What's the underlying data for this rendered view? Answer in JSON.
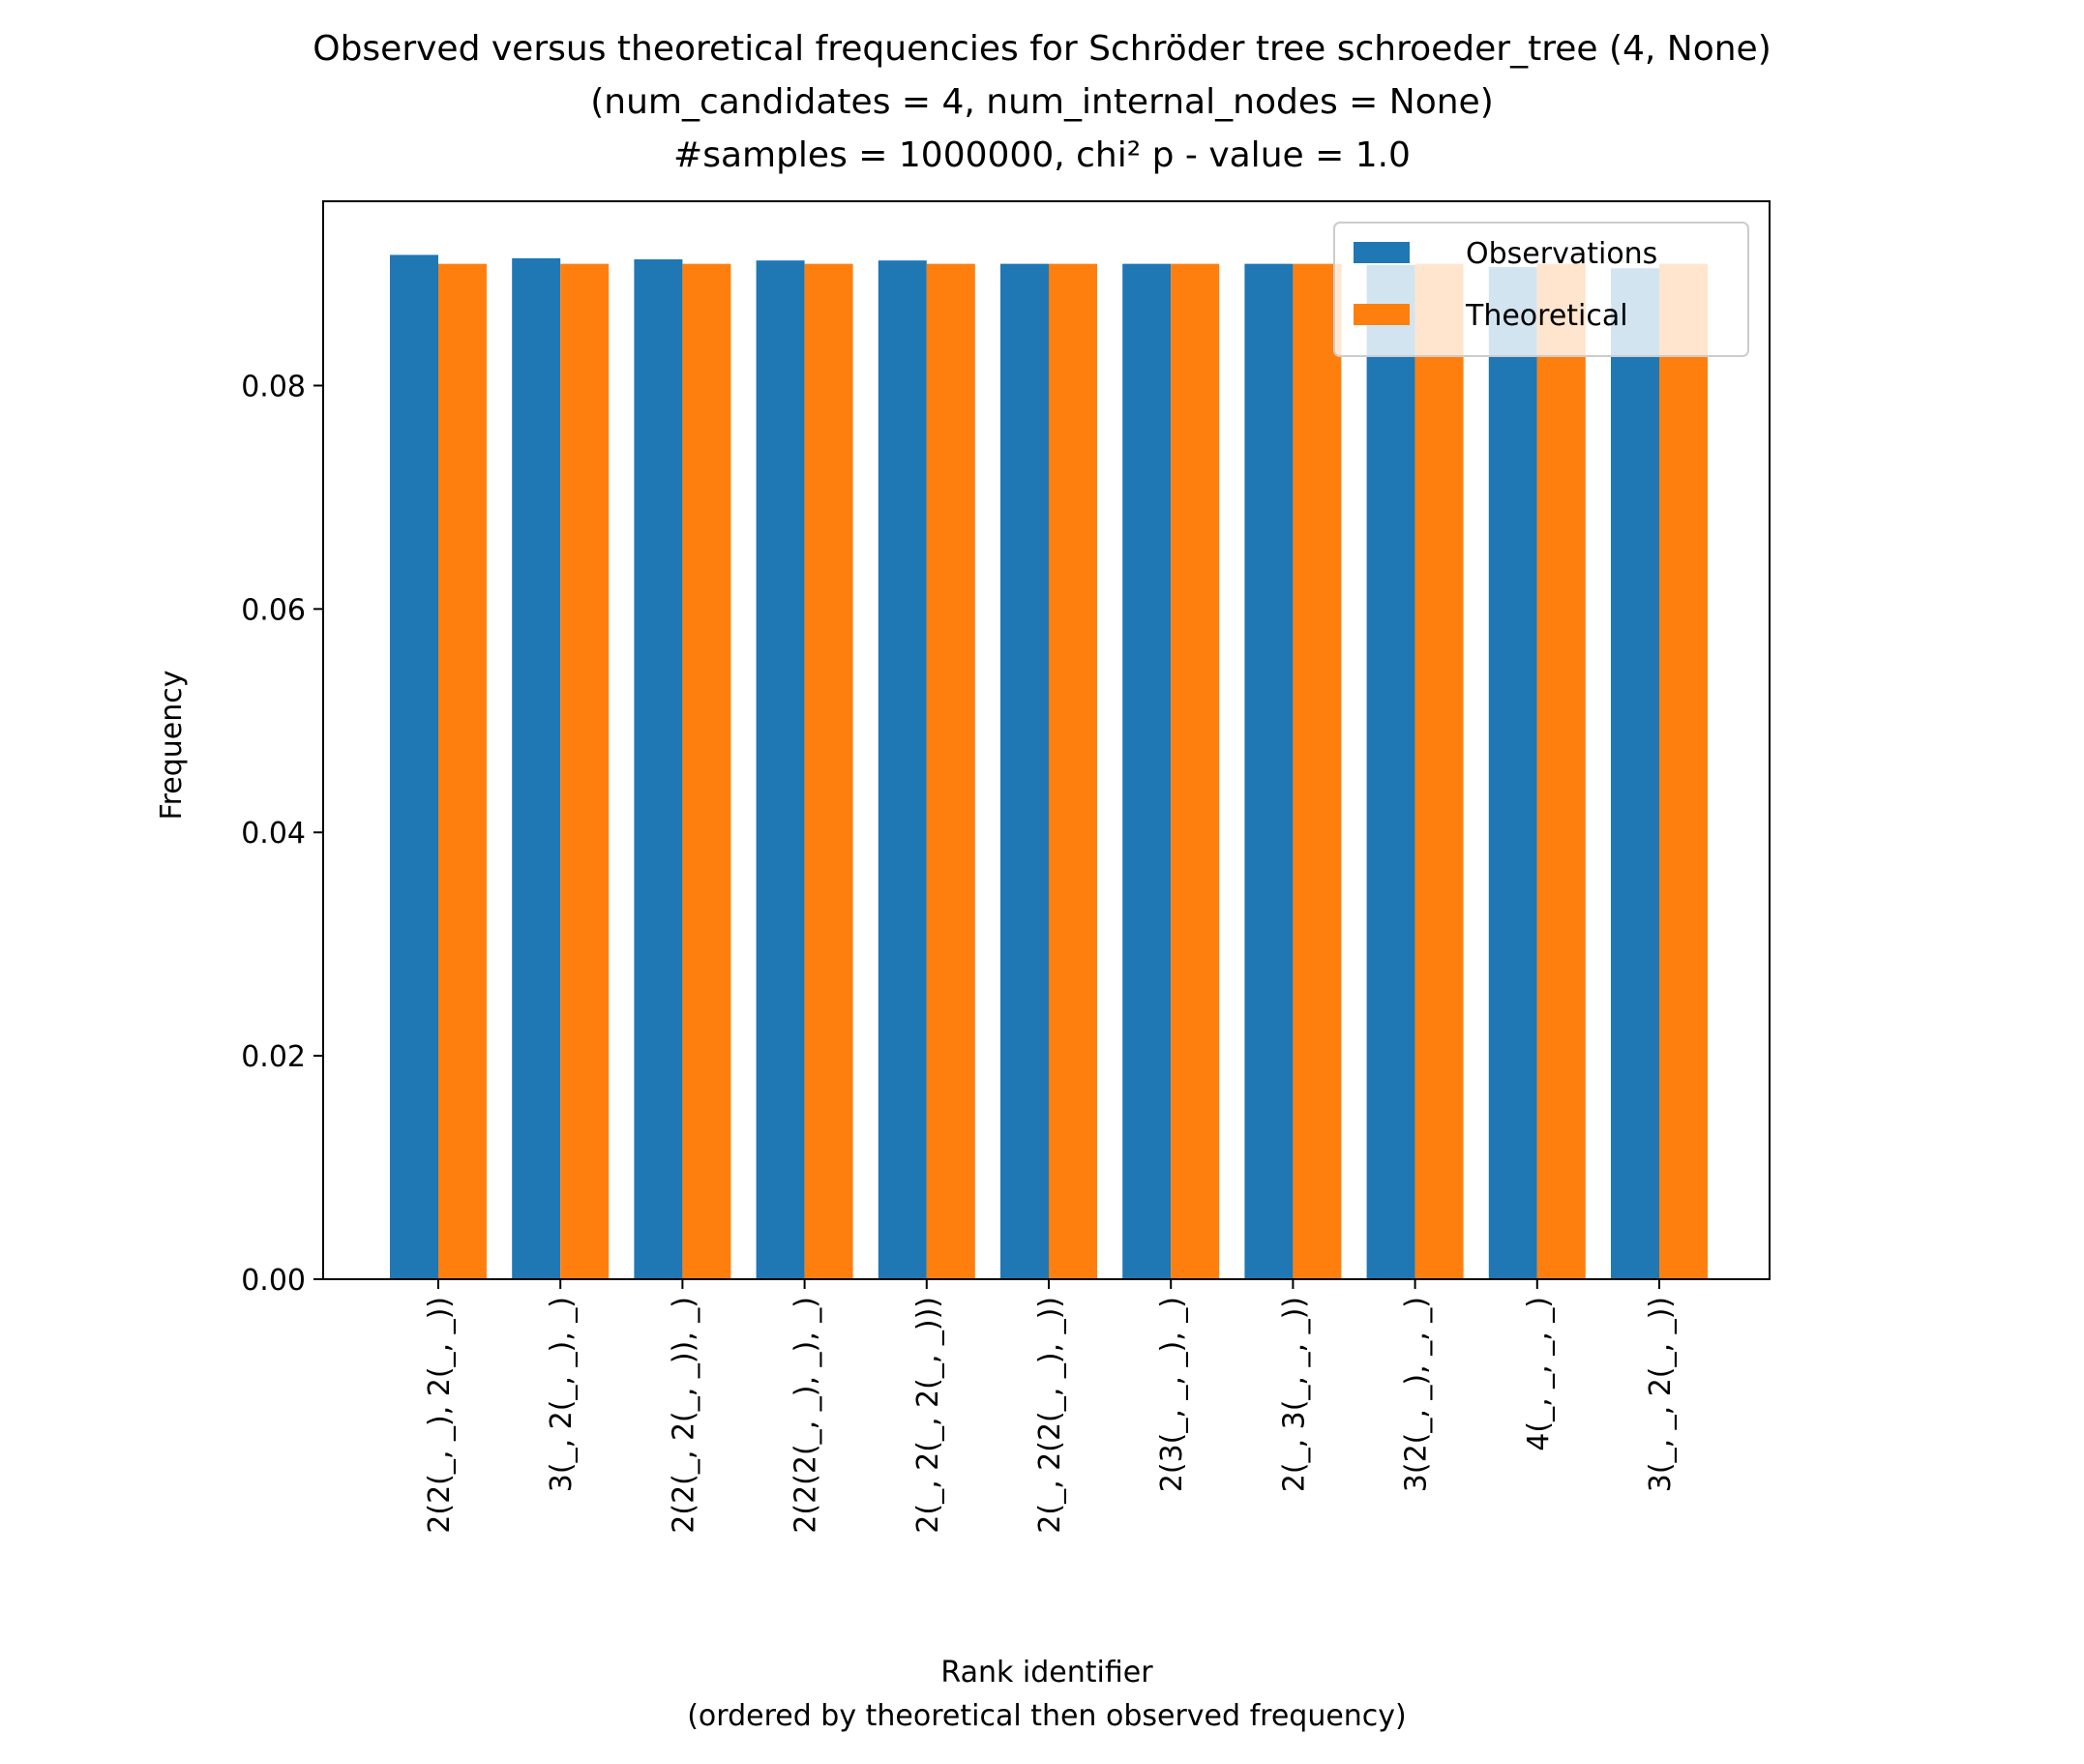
{
  "chart_data": {
    "type": "bar",
    "title": [
      "Observed versus theoretical frequencies for Schröder tree schroeder_tree (4, None)",
      "(num_candidates = 4, num_internal_nodes = None)",
      "#samples = 1000000, chi² p - value = 1.0"
    ],
    "xlabel": [
      "Rank identifier",
      "(ordered by theoretical then observed frequency)"
    ],
    "ylabel": "Frequency",
    "ylim": [
      0,
      0.0965
    ],
    "yticks": [
      0.0,
      0.02,
      0.04,
      0.06,
      0.08
    ],
    "ytick_labels": [
      "0.00",
      "0.02",
      "0.04",
      "0.06",
      "0.08"
    ],
    "categories": [
      "2(2(_, _), 2(_, _))",
      "3(_, 2(_, _), _)",
      "2(2(_, 2(_, _)), _)",
      "2(2(2(_, _), _), _)",
      "2(_, 2(_, 2(_, _)))",
      "2(_, 2(2(_, _), _))",
      "2(3(_, _, _), _)",
      "2(_, 3(_, _, _))",
      "3(2(_, _), _, _)",
      "4(_, _, _, _)",
      "3(_, _, 2(_, _))"
    ],
    "series": [
      {
        "name": "Observations",
        "color": "#1f77b4",
        "values": [
          0.0917,
          0.0914,
          0.0913,
          0.0912,
          0.0912,
          0.0909,
          0.0909,
          0.0909,
          0.0908,
          0.0906,
          0.0905
        ]
      },
      {
        "name": "Theoretical",
        "color": "#ff7f0e",
        "values": [
          0.0909,
          0.0909,
          0.0909,
          0.0909,
          0.0909,
          0.0909,
          0.0909,
          0.0909,
          0.0909,
          0.0909,
          0.0909
        ]
      }
    ],
    "legend": {
      "position": "top-right",
      "entries": [
        "Observations",
        "Theoretical"
      ]
    },
    "grid": false
  }
}
